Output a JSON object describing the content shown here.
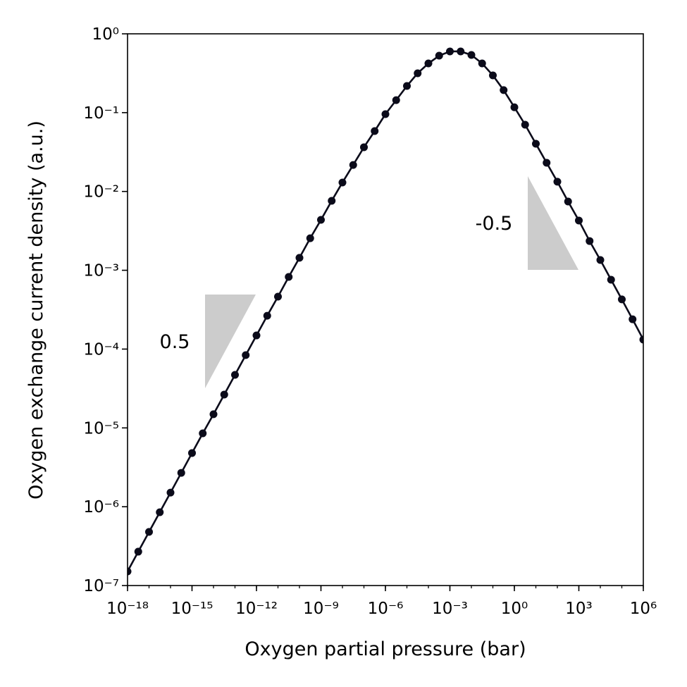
{
  "chart_data": {
    "type": "line",
    "xlabel": "Oxygen partial pressure (bar)",
    "ylabel": "Oxygen exchange current density (a.u.)",
    "xscale": "log",
    "yscale": "log",
    "marker": true,
    "color": "#0b0b1a",
    "x": [
      1e-18,
      3.16e-18,
      1e-17,
      3.16e-17,
      1e-16,
      3.16e-16,
      1e-15,
      3.16e-15,
      1e-14,
      3.16e-14,
      1e-13,
      3.16e-13,
      1e-12,
      3.16e-12,
      1e-11,
      3.16e-11,
      1e-10,
      3.16e-10,
      1e-09,
      3.16e-09,
      1e-08,
      3.16e-08,
      1e-07,
      3.16e-07,
      1e-06,
      3.16e-06,
      1e-05,
      3.16e-05,
      0.0001,
      0.000316,
      0.001,
      0.00316,
      0.01,
      0.0316,
      0.1,
      0.316,
      1,
      3.16,
      10,
      31.6,
      100,
      316,
      1000,
      3160,
      10000,
      31600,
      100000,
      316000,
      1000000
    ],
    "values": [
      1.51e-07,
      2.69e-07,
      4.79e-07,
      8.51e-07,
      1.51e-06,
      2.69e-06,
      4.8e-06,
      8.53e-06,
      1.49e-05,
      2.65e-05,
      4.71e-05,
      8.38e-05,
      0.000149,
      0.000265,
      0.000463,
      0.000824,
      0.00144,
      0.00255,
      0.00436,
      0.00761,
      0.013,
      0.0217,
      0.0364,
      0.0584,
      0.0957,
      0.144,
      0.218,
      0.316,
      0.421,
      0.528,
      0.598,
      0.598,
      0.539,
      0.421,
      0.297,
      0.193,
      0.117,
      0.0703,
      0.0403,
      0.0231,
      0.0133,
      0.00745,
      0.00428,
      0.00235,
      0.00135,
      0.000759,
      0.000427,
      0.000239,
      0.000132
    ],
    "xlim": [
      1e-18,
      1000000
    ],
    "ylim": [
      1e-07,
      1
    ],
    "xticks": [
      {
        "value": 1e-18,
        "label": "10⁻¹⁸"
      },
      {
        "value": 1e-15,
        "label": "10⁻¹⁵"
      },
      {
        "value": 1e-12,
        "label": "10⁻¹²"
      },
      {
        "value": 1e-09,
        "label": "10⁻⁹"
      },
      {
        "value": 1e-06,
        "label": "10⁻⁶"
      },
      {
        "value": 0.001,
        "label": "10⁻³"
      },
      {
        "value": 1,
        "label": "10⁰"
      },
      {
        "value": 1000,
        "label": "10³"
      },
      {
        "value": 1000000,
        "label": "10⁶"
      }
    ],
    "yticks": [
      {
        "value": 1e-07,
        "label": "10⁻⁷"
      },
      {
        "value": 1e-06,
        "label": "10⁻⁶"
      },
      {
        "value": 1e-05,
        "label": "10⁻⁵"
      },
      {
        "value": 0.0001,
        "label": "10⁻⁴"
      },
      {
        "value": 0.001,
        "label": "10⁻³"
      },
      {
        "value": 0.01,
        "label": "10⁻²"
      },
      {
        "value": 0.1,
        "label": "10⁻¹"
      },
      {
        "value": 1,
        "label": "10⁰"
      }
    ],
    "annotations": [
      {
        "text": "0.5"
      },
      {
        "text": "-0.5"
      }
    ]
  }
}
